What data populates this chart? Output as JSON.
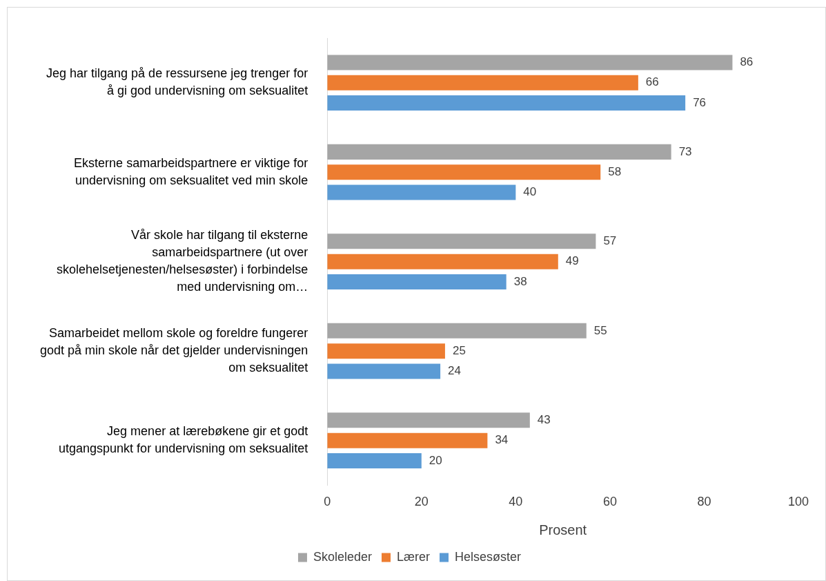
{
  "chart_data": {
    "type": "bar",
    "orientation": "horizontal",
    "xlabel": "Prosent",
    "categories": [
      "Jeg har tilgang på de ressursene jeg trenger for å gi god undervisning om seksualitet",
      "Eksterne samarbeidspartnere er viktige for undervisning om seksualitet ved min skole",
      "Vår skole har tilgang til eksterne samarbeidspartnere (ut over skolehelsetjenesten/helsesøster) i forbindelse med undervisning om…",
      "Samarbeidet mellom skole og foreldre fungerer godt på min skole når det gjelder undervisningen om seksualitet",
      "Jeg mener at lærebøkene gir et godt utgangspunkt for undervisning om seksualitet"
    ],
    "series": [
      {
        "name": "Skoleleder",
        "color": "#a5a5a5",
        "values": [
          86,
          73,
          57,
          55,
          43
        ]
      },
      {
        "name": "Lærer",
        "color": "#ed7d31",
        "values": [
          66,
          58,
          49,
          25,
          34
        ]
      },
      {
        "name": "Helsesøster",
        "color": "#5b9bd5",
        "values": [
          76,
          40,
          38,
          24,
          20
        ]
      }
    ],
    "xlim": [
      0,
      100
    ],
    "xticks": [
      0,
      20,
      40,
      60,
      80,
      100
    ],
    "grid": false,
    "legend": "bottom",
    "data_labels": true
  }
}
